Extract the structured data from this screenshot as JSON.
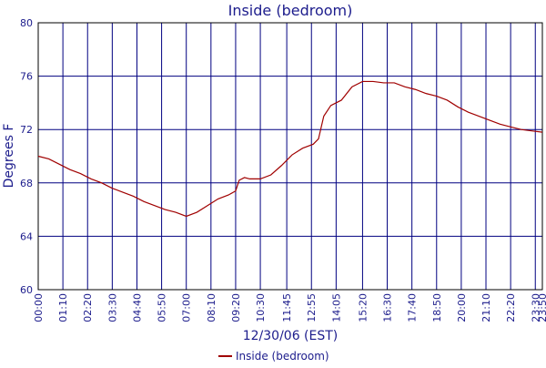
{
  "chart_data": {
    "type": "line",
    "title": "Inside (bedroom)",
    "x_label": "12/30/06 (EST)",
    "y_label": "Degrees F",
    "series": [
      {
        "name": "Inside (bedroom)",
        "color": "#a00000",
        "x": [
          0,
          30,
          60,
          90,
          120,
          150,
          180,
          210,
          240,
          270,
          300,
          330,
          360,
          390,
          420,
          450,
          480,
          510,
          540,
          560,
          570,
          585,
          600,
          630,
          660,
          690,
          720,
          750,
          780,
          795,
          810,
          830,
          860,
          890,
          920,
          950,
          980,
          1010,
          1040,
          1070,
          1100,
          1130,
          1160,
          1190,
          1220,
          1250,
          1280,
          1310,
          1340,
          1370,
          1400,
          1430
        ],
        "values": [
          70.0,
          69.8,
          69.4,
          69.0,
          68.7,
          68.3,
          68.0,
          67.6,
          67.3,
          67.0,
          66.6,
          66.3,
          66.0,
          65.8,
          65.5,
          65.8,
          66.3,
          66.8,
          67.1,
          67.4,
          68.2,
          68.4,
          68.3,
          68.3,
          68.6,
          69.3,
          70.1,
          70.6,
          70.9,
          71.3,
          73.0,
          73.8,
          74.2,
          75.2,
          75.6,
          75.6,
          75.5,
          75.5,
          75.2,
          75.0,
          74.7,
          74.5,
          74.2,
          73.7,
          73.3,
          73.0,
          72.7,
          72.4,
          72.2,
          72.0,
          71.9,
          71.8
        ]
      }
    ],
    "xlim": [
      0,
      1430
    ],
    "xticks": [
      {
        "value": 0,
        "label": "00:00"
      },
      {
        "value": 70,
        "label": "01:10"
      },
      {
        "value": 140,
        "label": "02:20"
      },
      {
        "value": 210,
        "label": "03:30"
      },
      {
        "value": 280,
        "label": "04:40"
      },
      {
        "value": 350,
        "label": "05:50"
      },
      {
        "value": 420,
        "label": "07:00"
      },
      {
        "value": 490,
        "label": "08:10"
      },
      {
        "value": 560,
        "label": "09:20"
      },
      {
        "value": 630,
        "label": "10:30"
      },
      {
        "value": 705,
        "label": "11:45"
      },
      {
        "value": 775,
        "label": "12:55"
      },
      {
        "value": 845,
        "label": "14:05"
      },
      {
        "value": 920,
        "label": "15:20"
      },
      {
        "value": 990,
        "label": "16:30"
      },
      {
        "value": 1060,
        "label": "17:40"
      },
      {
        "value": 1130,
        "label": "18:50"
      },
      {
        "value": 1200,
        "label": "20:00"
      },
      {
        "value": 1270,
        "label": "21:10"
      },
      {
        "value": 1340,
        "label": "22:20"
      },
      {
        "value": 1410,
        "label": "23:30"
      },
      {
        "value": 1430,
        "label": "23:50"
      }
    ],
    "ylim": [
      60,
      80
    ],
    "yticks": [
      60,
      64,
      68,
      72,
      76,
      80
    ],
    "grid": true
  }
}
